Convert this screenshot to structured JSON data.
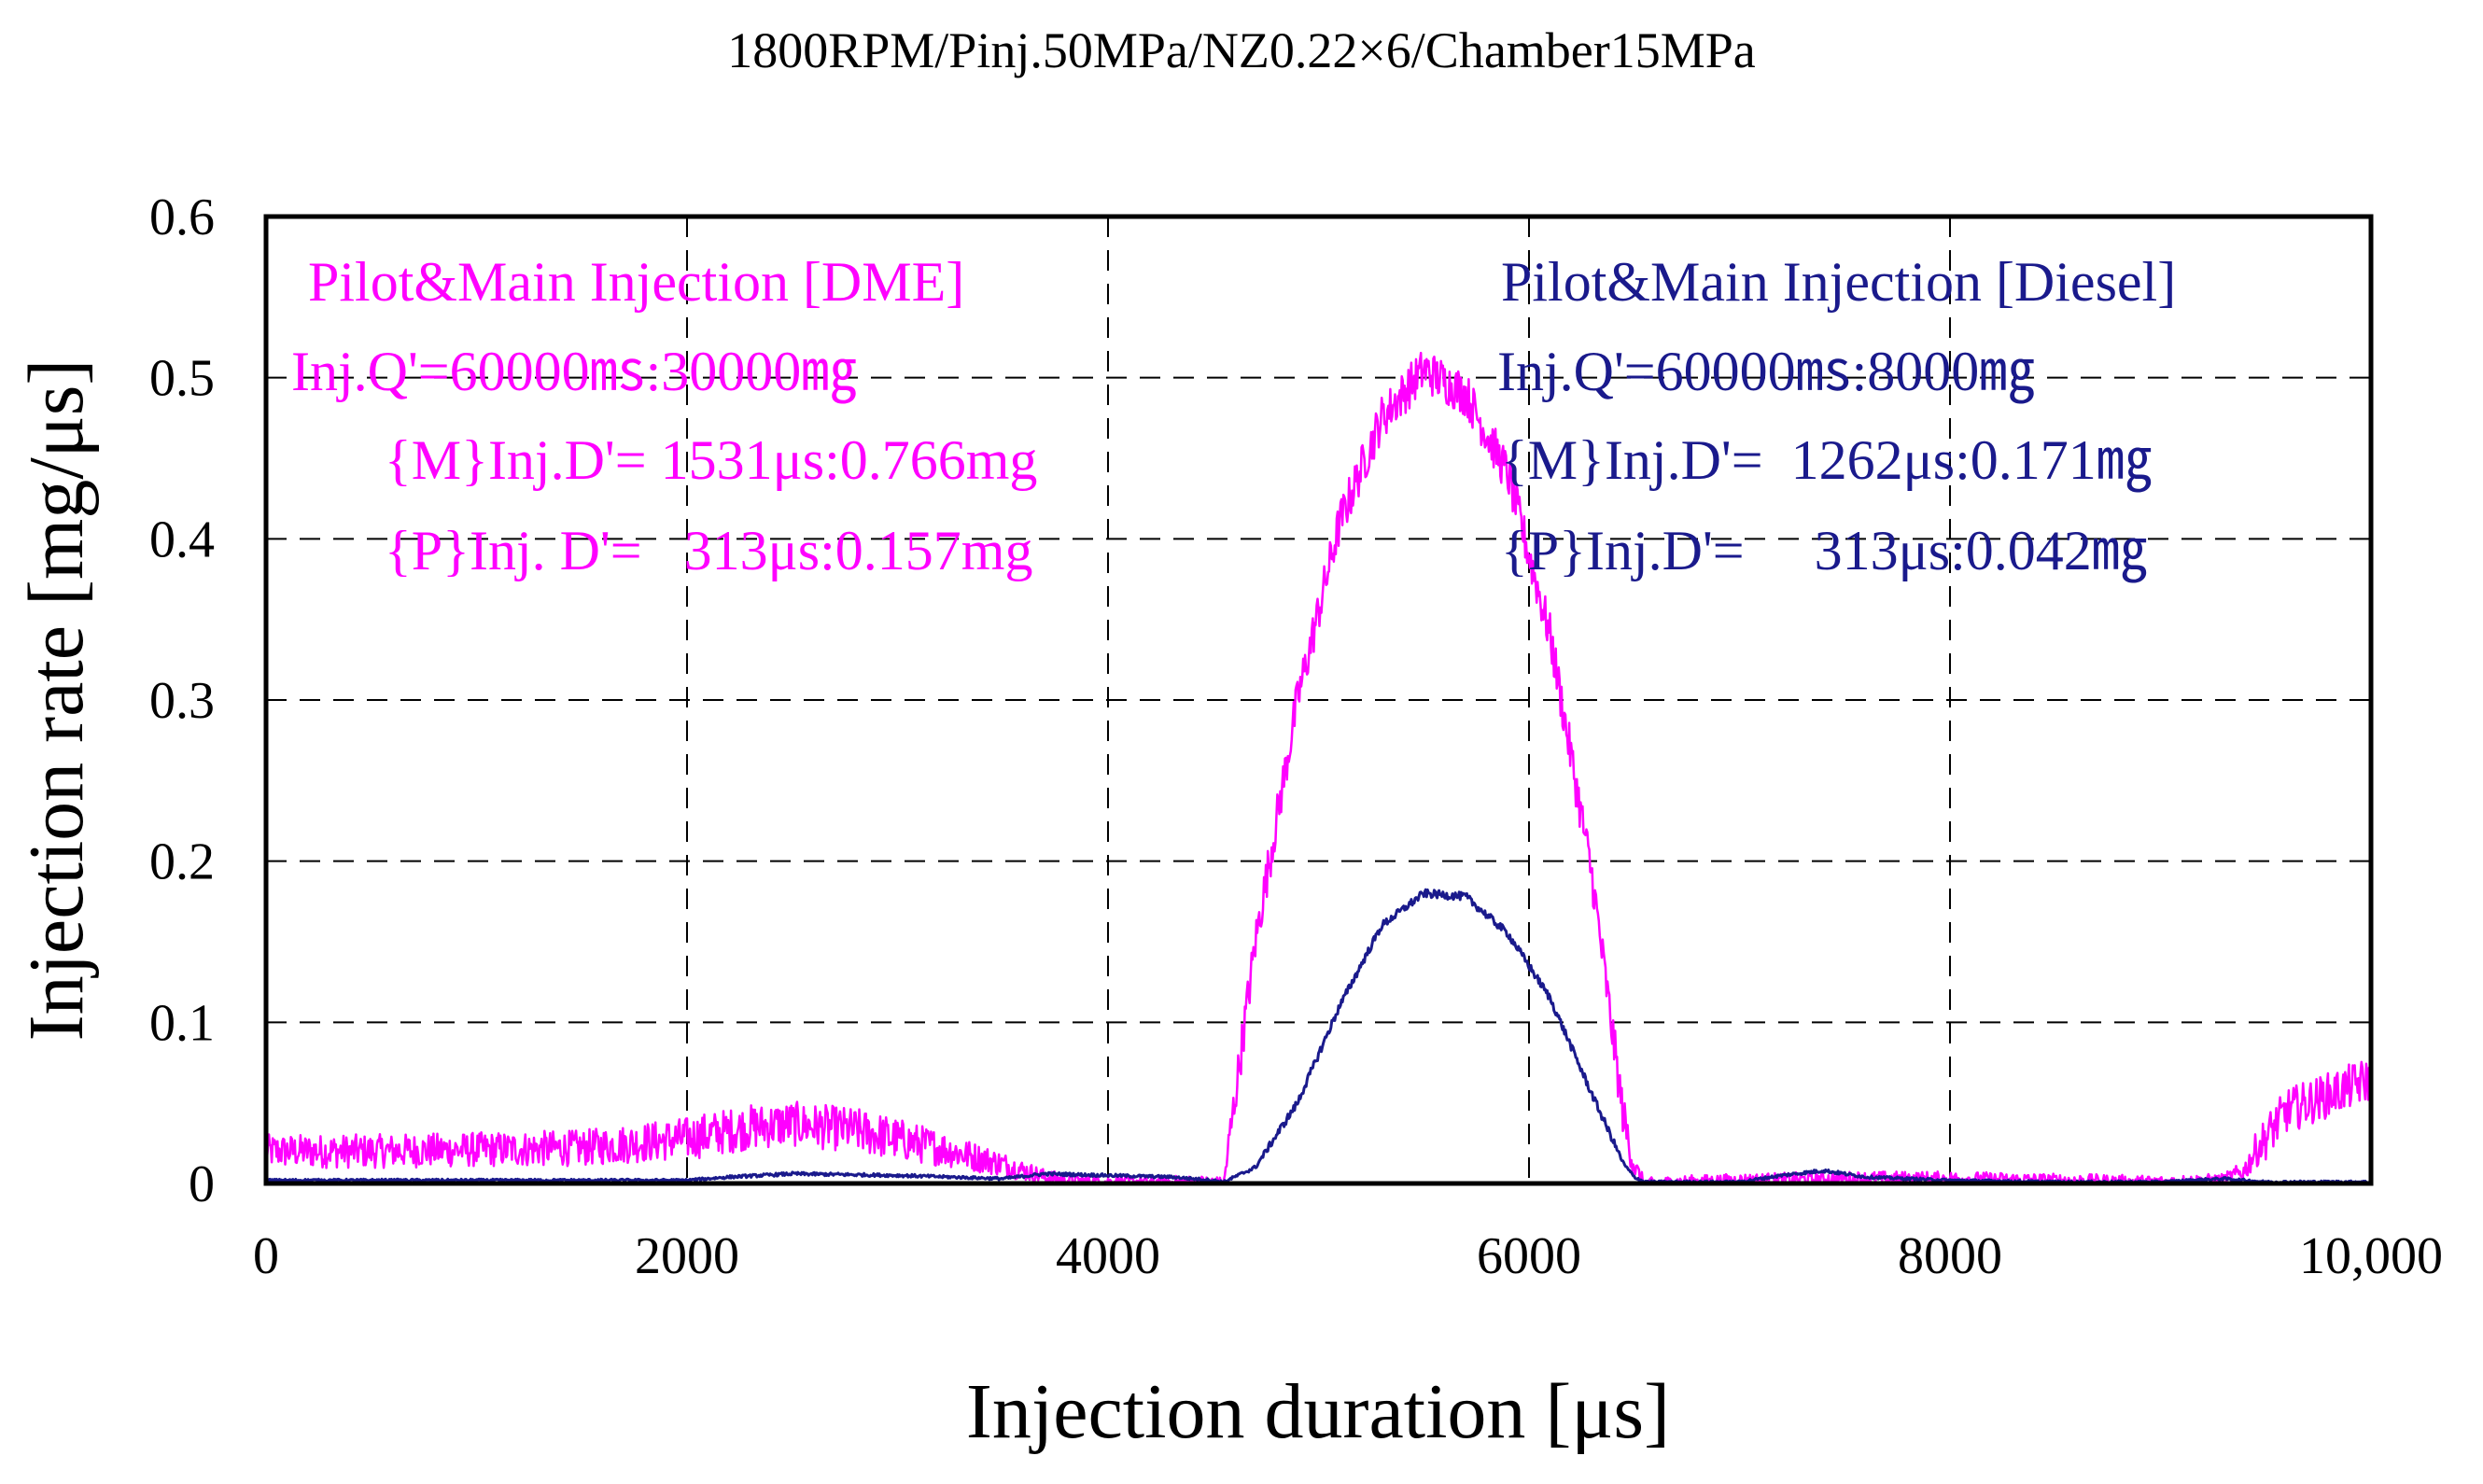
{
  "chart_data": {
    "type": "line",
    "title": "1800RPM/Pinj.50MPa/NZ0.22×6/Chamber15MPa",
    "xlabel": "Injection duration [μs]",
    "ylabel": "Injection rate [mg/μs]",
    "xlim": [
      0,
      10000
    ],
    "ylim": [
      0,
      0.6
    ],
    "x_ticks": [
      0,
      2000,
      4000,
      6000,
      8000,
      10000
    ],
    "x_tick_labels": [
      "0",
      "2000",
      "4000",
      "6000",
      "8000",
      "10,000"
    ],
    "y_ticks": [
      0,
      0.1,
      0.2,
      0.3,
      0.4,
      0.5,
      0.6
    ],
    "y_tick_labels": [
      "0",
      "0.1",
      "0.2",
      "0.3",
      "0.4",
      "0.5",
      "0.6"
    ],
    "grid": true,
    "series": [
      {
        "name": "Pilot&Main Injection [DME]",
        "color": "#ff00ff",
        "noise": 0.014,
        "x": [
          0,
          500,
          1000,
          1500,
          2000,
          2300,
          2500,
          2800,
          3200,
          3500,
          3700,
          3800,
          4000,
          4400,
          4500,
          4550,
          4700,
          4900,
          5100,
          5300,
          5500,
          5700,
          5900,
          6100,
          6300,
          6400,
          6450,
          6500,
          6550,
          6700,
          7000,
          7500,
          8000,
          8500,
          9000,
          9300,
          9400,
          9450,
          9600,
          9800,
          10000
        ],
        "y": [
          0.02,
          0.02,
          0.021,
          0.022,
          0.028,
          0.035,
          0.037,
          0.033,
          0.022,
          0.012,
          0.004,
          0.002,
          0.001,
          0.001,
          0.001,
          0.0,
          0.15,
          0.3,
          0.41,
          0.475,
          0.505,
          0.49,
          0.44,
          0.34,
          0.19,
          0.09,
          0.04,
          0.01,
          0.0,
          0.001,
          0.002,
          0.003,
          0.003,
          0.002,
          0.001,
          0.002,
          0.008,
          0.02,
          0.045,
          0.055,
          0.065
        ]
      },
      {
        "name": "Pilot&Main Injection [Diesel]",
        "color": "#1a1a8c",
        "noise": 0.0025,
        "x": [
          0,
          1000,
          2000,
          2200,
          2500,
          3000,
          3500,
          3700,
          4000,
          4300,
          4500,
          4550,
          4700,
          4900,
          5100,
          5300,
          5500,
          5700,
          5900,
          6100,
          6300,
          6450,
          6500,
          6550,
          7000,
          7200,
          7400,
          7600,
          8000,
          8500,
          9000,
          9300,
          9500,
          10000
        ],
        "y": [
          0.002,
          0.002,
          0.002,
          0.004,
          0.006,
          0.005,
          0.003,
          0.006,
          0.005,
          0.004,
          0.002,
          0.001,
          0.01,
          0.05,
          0.11,
          0.16,
          0.18,
          0.178,
          0.155,
          0.115,
          0.055,
          0.012,
          0.004,
          0.001,
          0.001,
          0.005,
          0.008,
          0.004,
          0.002,
          0.001,
          0.001,
          0.003,
          0.001,
          0.001
        ]
      }
    ],
    "annotations": {
      "dme": {
        "line1": "Pilot&Main Injection [DME]",
        "line2": "Inj.Q'=60000㎳:30000㎎",
        "line3": "{M}Inj.D'= 1531μs:0.766mg",
        "line4": "{P}Inj. D'=   313μs:0.157mg"
      },
      "diesel": {
        "line1": "Pilot&Main Injection [Diesel]",
        "line2": "Inj.Q'=60000㎳:8000㎎",
        "line3": "{M}Inj.D'=  1262μs:0.171㎎",
        "line4": "{P}Inj.D'=     313μs:0.042㎎"
      }
    }
  }
}
